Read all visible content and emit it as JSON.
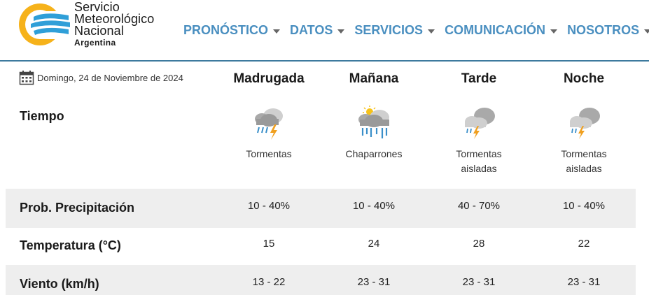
{
  "logo": {
    "line1": "Servicio",
    "line2": "Meteorológico",
    "line3": "Nacional",
    "sub": "Argentina"
  },
  "nav": [
    {
      "label": "PRONÓSTICO"
    },
    {
      "label": "DATOS"
    },
    {
      "label": "SERVICIOS"
    },
    {
      "label": "COMUNICACIÓN"
    },
    {
      "label": "NOSOTROS"
    }
  ],
  "date_text": "Domingo, 24 de Noviembre de 2024",
  "periods": [
    {
      "name": "Madrugada",
      "icon": "thunderstorm-icon",
      "desc1": "Tormentas",
      "desc2": "",
      "precip": "10 - 40%",
      "temp": "15",
      "wind": "13 - 22"
    },
    {
      "name": "Mañana",
      "icon": "showers-sun-icon",
      "desc1": "Chaparrones",
      "desc2": "",
      "precip": "10 - 40%",
      "temp": "24",
      "wind": "23 - 31"
    },
    {
      "name": "Tarde",
      "icon": "isolated-storms-icon",
      "desc1": "Tormentas",
      "desc2": "aisladas",
      "precip": "40 - 70%",
      "temp": "28",
      "wind": "23 - 31"
    },
    {
      "name": "Noche",
      "icon": "isolated-storms-icon",
      "desc1": "Tormentas",
      "desc2": "aisladas",
      "precip": "10 - 40%",
      "temp": "22",
      "wind": "23 - 31"
    }
  ],
  "rows": {
    "tiempo": "Tiempo",
    "precip": "Prob. Precipitación",
    "temp": "Temperatura (°C)",
    "wind": "Viento (km/h)"
  },
  "colors": {
    "nav": "#4a8fc0",
    "brand_blue": "#2f9fd8",
    "brand_yellow": "#f6b21a",
    "band": "#eeeeee",
    "header_line": "#3d7a9e"
  }
}
